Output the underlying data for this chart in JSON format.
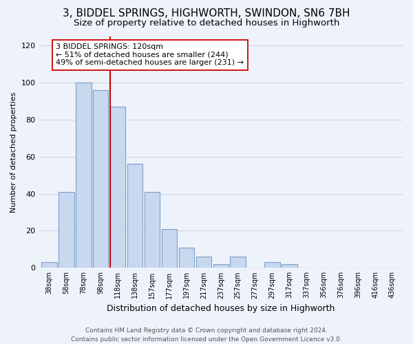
{
  "title": "3, BIDDEL SPRINGS, HIGHWORTH, SWINDON, SN6 7BH",
  "subtitle": "Size of property relative to detached houses in Highworth",
  "xlabel": "Distribution of detached houses by size in Highworth",
  "ylabel": "Number of detached properties",
  "bar_labels": [
    "38sqm",
    "58sqm",
    "78sqm",
    "98sqm",
    "118sqm",
    "138sqm",
    "157sqm",
    "177sqm",
    "197sqm",
    "217sqm",
    "237sqm",
    "257sqm",
    "277sqm",
    "297sqm",
    "317sqm",
    "337sqm",
    "356sqm",
    "376sqm",
    "396sqm",
    "416sqm",
    "436sqm"
  ],
  "bar_values": [
    3,
    41,
    100,
    96,
    87,
    56,
    41,
    21,
    11,
    6,
    2,
    6,
    0,
    3,
    2,
    0,
    0,
    0,
    0,
    0,
    0
  ],
  "bar_color": "#c8d8ee",
  "bar_edge_color": "#7aA0c8",
  "highlight_line_index": 4,
  "highlight_line_color": "#cc0000",
  "annotation_line1": "3 BIDDEL SPRINGS: 120sqm",
  "annotation_line2": "← 51% of detached houses are smaller (244)",
  "annotation_line3": "49% of semi-detached houses are larger (231) →",
  "annotation_box_color": "#ffffff",
  "annotation_box_edge": "#cc0000",
  "ylim": [
    0,
    125
  ],
  "yticks": [
    0,
    20,
    40,
    60,
    80,
    100,
    120
  ],
  "background_color": "#eef2fa",
  "grid_color": "#d0d8e8",
  "footer_text": "Contains HM Land Registry data © Crown copyright and database right 2024.\nContains public sector information licensed under the Open Government Licence v3.0.",
  "title_fontsize": 11,
  "subtitle_fontsize": 9.5,
  "xlabel_fontsize": 9,
  "ylabel_fontsize": 8,
  "annotation_fontsize": 8,
  "tick_fontsize": 7,
  "footer_fontsize": 6.5
}
